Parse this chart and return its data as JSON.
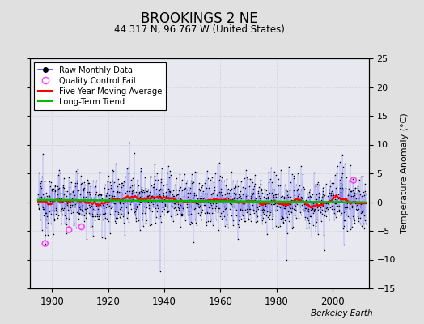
{
  "title": "BROOKINGS 2 NE",
  "subtitle": "44.317 N, 96.767 W (United States)",
  "ylabel": "Temperature Anomaly (°C)",
  "credit": "Berkeley Earth",
  "xlim": [
    1892,
    2013
  ],
  "ylim": [
    -15,
    25
  ],
  "yticks": [
    -15,
    -10,
    -5,
    0,
    5,
    10,
    15,
    20,
    25
  ],
  "xticks": [
    1900,
    1920,
    1940,
    1960,
    1980,
    2000
  ],
  "raw_color": "#4444ff",
  "qc_color": "#ff44ff",
  "moving_avg_color": "#ff0000",
  "trend_color": "#00bb00",
  "bg_color": "#e0e0e0",
  "plot_bg": "#e8e8f0",
  "seed": 12345,
  "x_start": 1895.0,
  "x_end": 2011.9,
  "n_months": 1400
}
